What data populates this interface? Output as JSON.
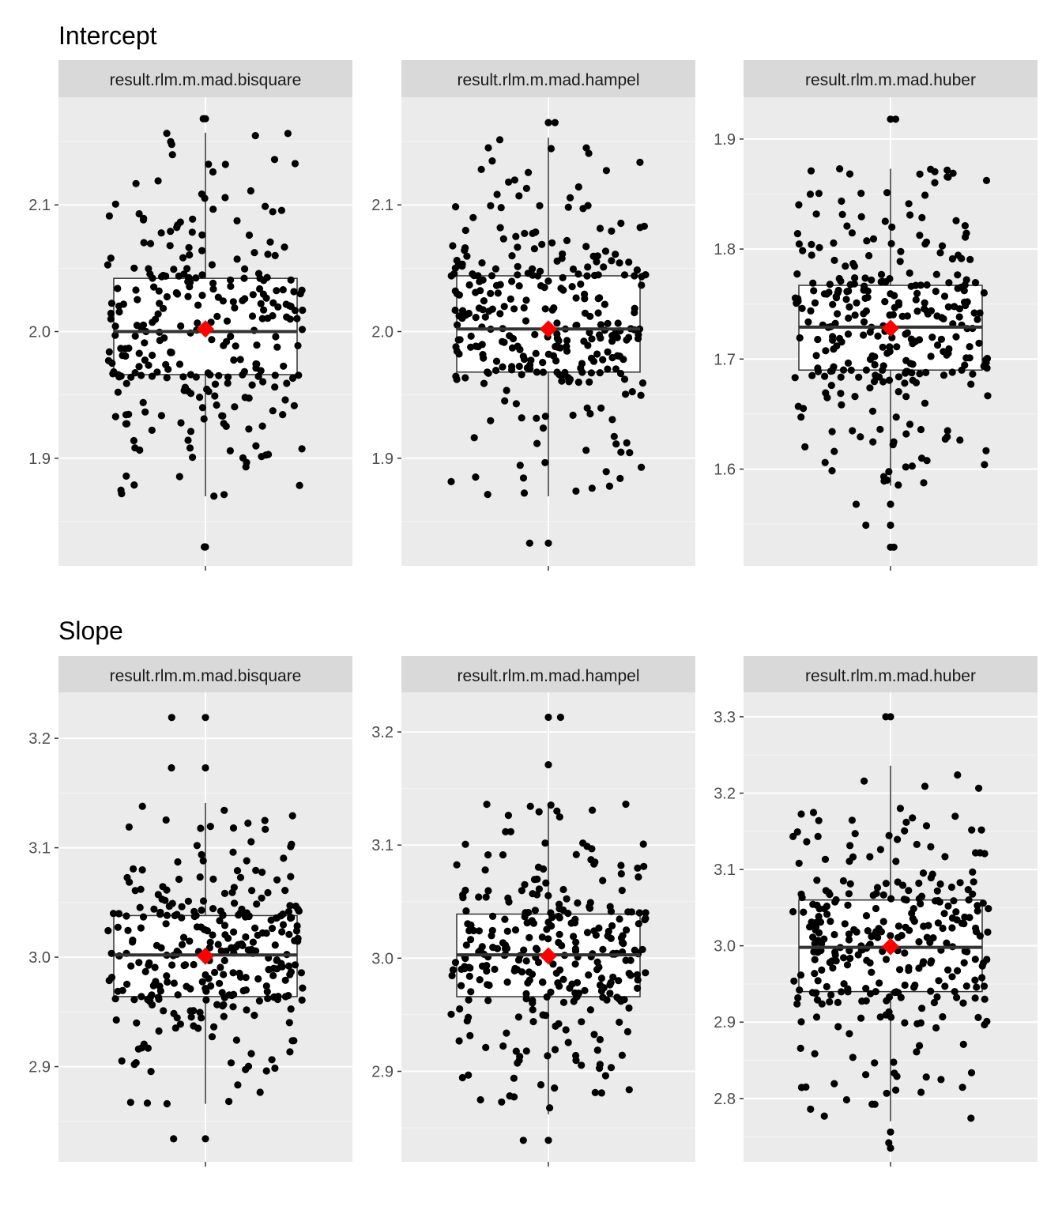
{
  "colors": {
    "panel_bg": "#EBEBEB",
    "strip_bg": "#D9D9D9",
    "grid_major": "#FFFFFF",
    "grid_minor": "#F5F5F5",
    "point": "#000000",
    "box_fill": "#FFFFFF",
    "box_line": "#333333",
    "mean_marker": "#FF0000",
    "tick_text": "#4D4D4D",
    "strip_text": "#1A1A1A"
  },
  "chart_data": [
    {
      "title": "Intercept",
      "type": "box_jitter",
      "panels": [
        {
          "strip": "result.rlm.m.mad.bisquare",
          "ylim": [
            1.815,
            2.185
          ],
          "yticks": [
            1.9,
            2.0,
            2.1
          ],
          "tick_labels": [
            "1.9",
            "2.0",
            "2.1"
          ],
          "box": {
            "lower_whisker": 1.87,
            "q1": 1.966,
            "median": 2.0,
            "q3": 2.042,
            "upper_whisker": 2.157,
            "mean": 2.002
          },
          "n_points": 280,
          "extreme_points": [
            1.83,
            1.83,
            2.168,
            2.168
          ]
        },
        {
          "strip": "result.rlm.m.mad.hampel",
          "ylim": [
            1.815,
            2.185
          ],
          "yticks": [
            1.9,
            2.0,
            2.1
          ],
          "tick_labels": [
            "1.9",
            "2.0",
            "2.1"
          ],
          "box": {
            "lower_whisker": 1.87,
            "q1": 1.968,
            "median": 2.002,
            "q3": 2.044,
            "upper_whisker": 2.153,
            "mean": 2.002
          },
          "n_points": 300,
          "extreme_points": [
            1.833,
            1.833,
            2.165,
            2.165
          ]
        },
        {
          "strip": "result.rlm.m.mad.huber",
          "ylim": [
            1.512,
            1.938
          ],
          "yticks": [
            1.6,
            1.7,
            1.8,
            1.9
          ],
          "tick_labels": [
            "1.6",
            "1.7",
            "1.8",
            "1.9"
          ],
          "box": {
            "lower_whisker": 1.585,
            "q1": 1.69,
            "median": 1.729,
            "q3": 1.767,
            "upper_whisker": 1.873,
            "mean": 1.728
          },
          "n_points": 300,
          "extreme_points": [
            1.529,
            1.529,
            1.549,
            1.549,
            1.568,
            1.568,
            1.918,
            1.918
          ]
        }
      ]
    },
    {
      "title": "Slope",
      "type": "box_jitter",
      "panels": [
        {
          "strip": "result.rlm.m.mad.bisquare",
          "ylim": [
            2.813,
            3.242
          ],
          "yticks": [
            2.9,
            3.0,
            3.1,
            3.2
          ],
          "tick_labels": [
            "2.9",
            "3.0",
            "3.1",
            "3.2"
          ],
          "box": {
            "lower_whisker": 2.866,
            "q1": 2.964,
            "median": 3.002,
            "q3": 3.038,
            "upper_whisker": 3.141,
            "mean": 3.001
          },
          "n_points": 300,
          "extreme_points": [
            2.834,
            2.834,
            3.219,
            3.219,
            3.173,
            3.173
          ]
        },
        {
          "strip": "result.rlm.m.mad.hampel",
          "ylim": [
            2.82,
            3.235
          ],
          "yticks": [
            2.9,
            3.0,
            3.1,
            3.2
          ],
          "tick_labels": [
            "2.9",
            "3.0",
            "3.1",
            "3.2"
          ],
          "box": {
            "lower_whisker": 2.862,
            "q1": 2.966,
            "median": 3.003,
            "q3": 3.039,
            "upper_whisker": 3.137,
            "mean": 3.002
          },
          "n_points": 300,
          "extreme_points": [
            2.839,
            2.839,
            3.213,
            3.213,
            3.171
          ]
        },
        {
          "strip": "result.rlm.m.mad.huber",
          "ylim": [
            2.717,
            3.332
          ],
          "yticks": [
            2.8,
            2.9,
            3.0,
            3.1,
            3.2,
            3.3
          ],
          "tick_labels": [
            "2.8",
            "2.9",
            "3.0",
            "3.1",
            "3.2",
            "3.3"
          ],
          "box": {
            "lower_whisker": 2.77,
            "q1": 2.94,
            "median": 2.998,
            "q3": 3.06,
            "upper_whisker": 3.236,
            "mean": 2.999
          },
          "n_points": 300,
          "extreme_points": [
            2.735,
            2.742,
            2.756,
            3.3,
            3.3
          ]
        }
      ]
    }
  ]
}
